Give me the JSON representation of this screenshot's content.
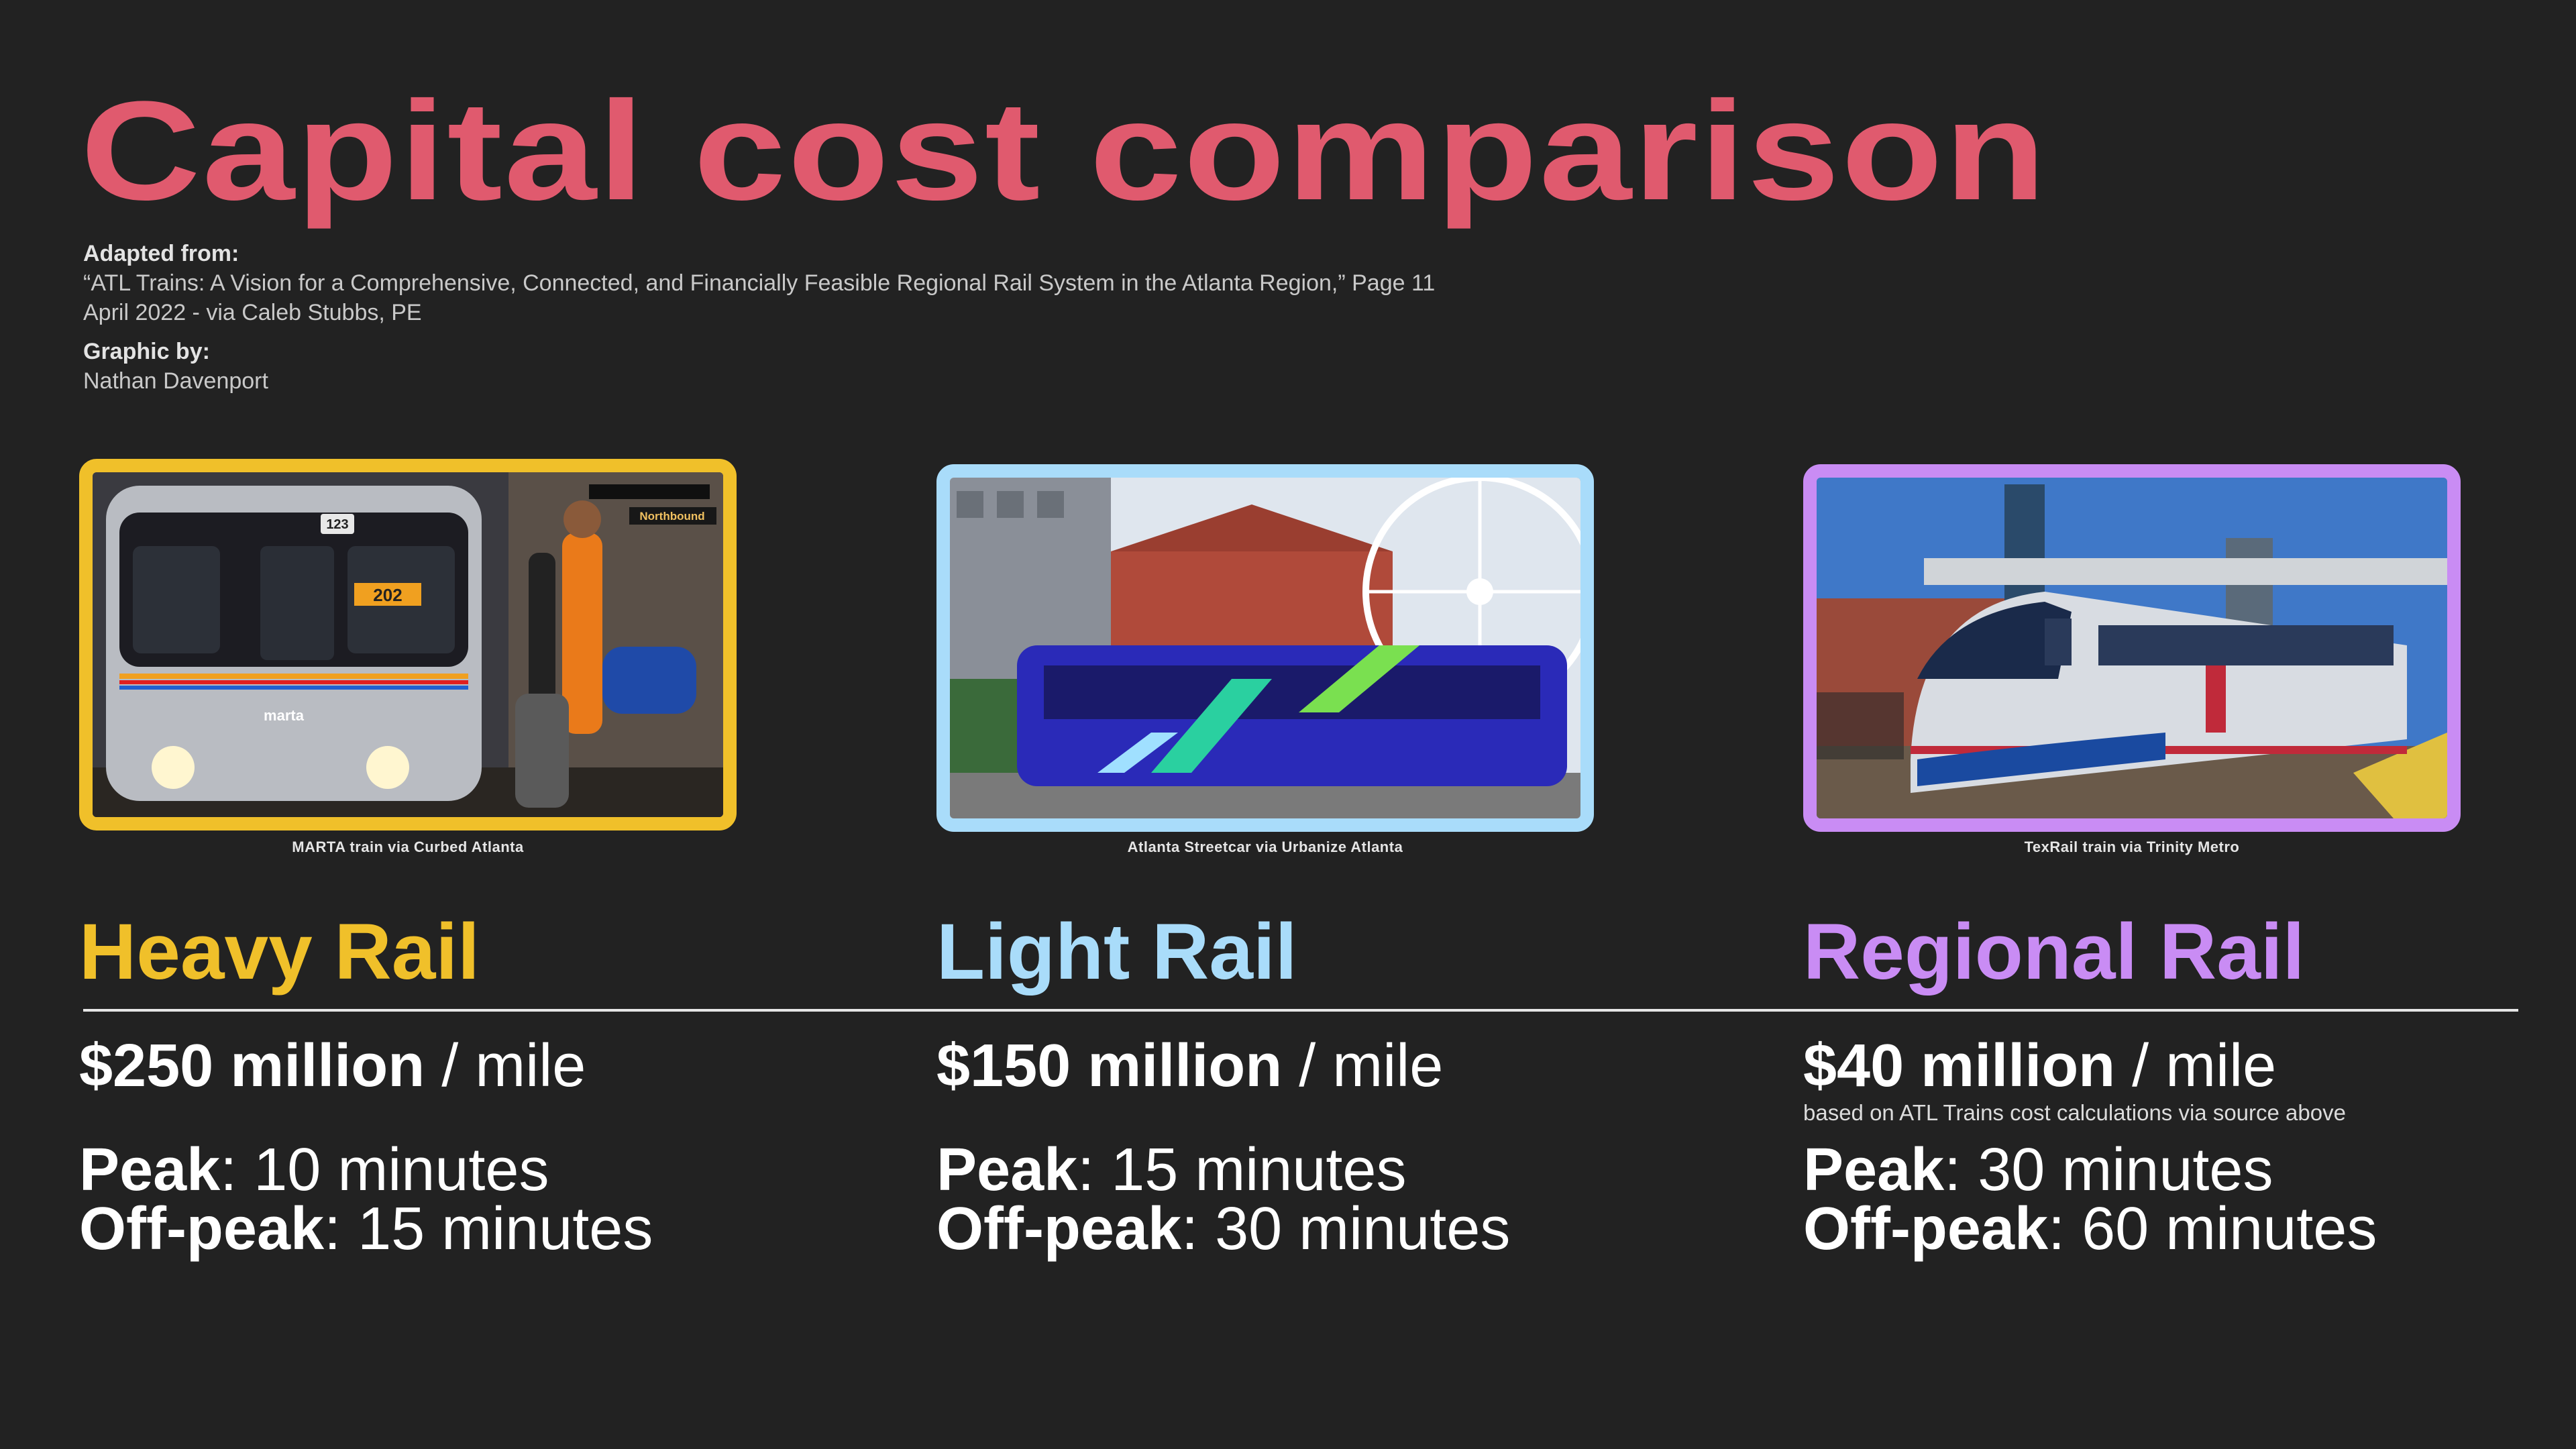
{
  "title": "Capital cost comparison",
  "credits": {
    "adapted_heading": "Adapted from:",
    "adapted_line1": "“ATL Trains: A Vision for a Comprehensive, Connected, and Financially Feasible Regional Rail System in the Atlanta Region,” Page 11",
    "adapted_line2": "April 2022 - via Caleb Stubbs, PE",
    "graphic_heading": "Graphic by:",
    "graphic_name": "Nathan Davenport"
  },
  "colors": {
    "title": "#e05a6e",
    "heavy": "#f0c02a",
    "light": "#a9dcfa",
    "regional": "#c98cf4",
    "background": "#222222"
  },
  "columns": [
    {
      "photo_caption": "MARTA train via Curbed Atlanta",
      "photo_text": {
        "number": "123",
        "route": "202",
        "brand": "marta",
        "sign": "Northbound"
      },
      "type": "Heavy Rail",
      "cost_amount": "$250 million",
      "cost_unit": " / mile",
      "peak_label": "Peak",
      "peak_value": ": 10 minutes",
      "offpeak_label": "Off-peak",
      "offpeak_value": ": 15 minutes"
    },
    {
      "photo_caption": "Atlanta Streetcar via Urbanize Atlanta",
      "type": "Light Rail",
      "cost_amount": "$150 million",
      "cost_unit": " / mile",
      "peak_label": "Peak",
      "peak_value": ": 15 minutes",
      "offpeak_label": "Off-peak",
      "offpeak_value": ": 30 minutes"
    },
    {
      "photo_caption": "TexRail train via Trinity Metro",
      "type": "Regional Rail",
      "cost_amount": "$40 million",
      "cost_unit": " / mile",
      "cost_note": "based on ATL Trains cost calculations via source above",
      "peak_label": "Peak",
      "peak_value": ": 30 minutes",
      "offpeak_label": "Off-peak",
      "offpeak_value": ": 60 minutes"
    }
  ]
}
